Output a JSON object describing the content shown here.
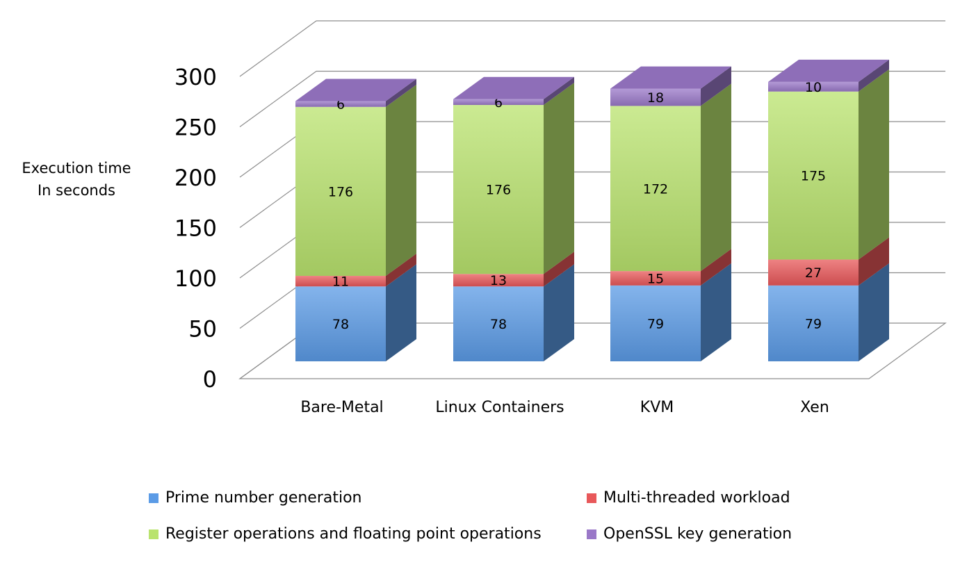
{
  "chart_data": {
    "type": "bar",
    "stacked": true,
    "three_d": true,
    "title": "",
    "xlabel": "",
    "ylabel": [
      "Execution time",
      "In seconds"
    ],
    "ylim": [
      0,
      300
    ],
    "yticks": [
      0,
      50,
      100,
      150,
      200,
      250,
      300
    ],
    "grid": true,
    "legend_position": "bottom",
    "categories": [
      "Bare-Metal",
      "Linux Containers",
      "KVM",
      "Xen"
    ],
    "series": [
      {
        "name": "Prime number generation",
        "color": "#5b9be6",
        "values": [
          78,
          78,
          79,
          79
        ]
      },
      {
        "name": "Multi-threaded workload",
        "color": "#e8585a",
        "values": [
          11,
          13,
          15,
          27
        ]
      },
      {
        "name": "Register operations and floating point operations",
        "color": "#b9e36e",
        "values": [
          176,
          176,
          172,
          175
        ]
      },
      {
        "name": "OpenSSL key generation",
        "color": "#9a78c8",
        "values": [
          6,
          6,
          18,
          10
        ]
      }
    ]
  }
}
